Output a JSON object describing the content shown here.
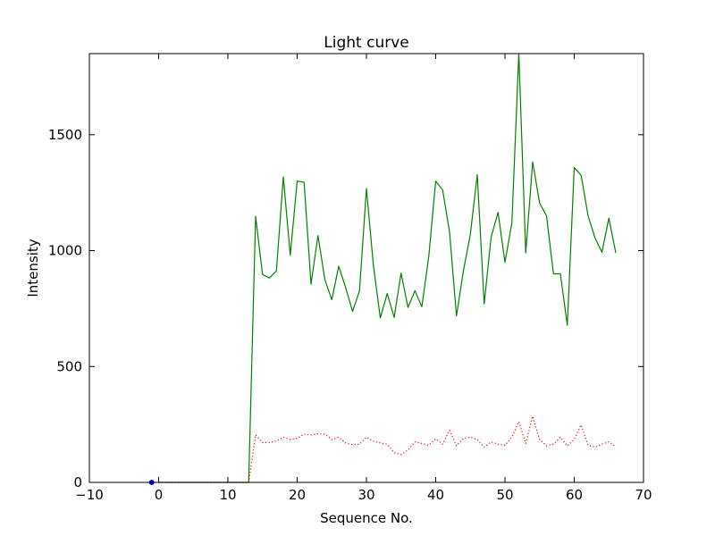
{
  "chart_data": {
    "type": "line",
    "title": "Light curve",
    "xlabel": "Sequence No.",
    "ylabel": "Intensity",
    "xlim": [
      -10,
      70
    ],
    "ylim": [
      0,
      1850
    ],
    "xticks": [
      -10,
      0,
      10,
      20,
      30,
      40,
      50,
      60,
      70
    ],
    "yticks": [
      0,
      500,
      1000,
      1500
    ],
    "grid": false,
    "legend": "none",
    "series": [
      {
        "style": "solid",
        "color": "#008000",
        "x": [
          0,
          1,
          2,
          3,
          4,
          5,
          6,
          7,
          8,
          9,
          10,
          11,
          12,
          13,
          14,
          15,
          16,
          17,
          18,
          19,
          20,
          21,
          22,
          23,
          24,
          25,
          26,
          27,
          28,
          29,
          30,
          31,
          32,
          33,
          34,
          35,
          36,
          37,
          38,
          39,
          40,
          41,
          42,
          43,
          44,
          45,
          46,
          47,
          48,
          49,
          50,
          51,
          52,
          53,
          54,
          55,
          56,
          57,
          58,
          59,
          60,
          61,
          62,
          63,
          64,
          65,
          66
        ],
        "y": [
          0,
          0,
          0,
          0,
          0,
          0,
          0,
          0,
          0,
          0,
          0,
          0,
          0,
          0,
          1148,
          897,
          882,
          912,
          1318,
          980,
          1300,
          1295,
          855,
          1065,
          875,
          788,
          933,
          840,
          738,
          827,
          1268,
          938,
          710,
          815,
          712,
          903,
          755,
          827,
          758,
          975,
          1300,
          1262,
          1080,
          718,
          913,
          1070,
          1328,
          770,
          1058,
          1165,
          950,
          1120,
          1850,
          990,
          1383,
          1205,
          1150,
          900,
          900,
          678,
          1358,
          1325,
          1150,
          1055,
          993,
          1140,
          990
        ]
      },
      {
        "style": "dotted",
        "color": "#ff0000",
        "x": [
          0,
          1,
          2,
          3,
          4,
          5,
          6,
          7,
          8,
          9,
          10,
          11,
          12,
          13,
          14,
          15,
          16,
          17,
          18,
          19,
          20,
          21,
          22,
          23,
          24,
          25,
          26,
          27,
          28,
          29,
          30,
          31,
          32,
          33,
          34,
          35,
          36,
          37,
          38,
          39,
          40,
          41,
          42,
          43,
          44,
          45,
          46,
          47,
          48,
          49,
          50,
          51,
          52,
          53,
          54,
          55,
          56,
          57,
          58,
          59,
          60,
          61,
          62,
          63,
          64,
          65,
          66
        ],
        "y": [
          0,
          0,
          0,
          0,
          0,
          0,
          0,
          0,
          0,
          0,
          0,
          0,
          0,
          0,
          205,
          172,
          172,
          178,
          195,
          185,
          190,
          208,
          205,
          210,
          208,
          185,
          195,
          170,
          163,
          165,
          195,
          178,
          170,
          165,
          128,
          120,
          140,
          175,
          168,
          160,
          188,
          165,
          225,
          158,
          190,
          195,
          185,
          152,
          175,
          165,
          160,
          195,
          262,
          168,
          285,
          185,
          158,
          165,
          195,
          158,
          185,
          248,
          160,
          152,
          165,
          175,
          155
        ]
      },
      {
        "style": "marker",
        "color": "#0000ff",
        "x": [
          -1
        ],
        "y": [
          0
        ]
      }
    ]
  }
}
